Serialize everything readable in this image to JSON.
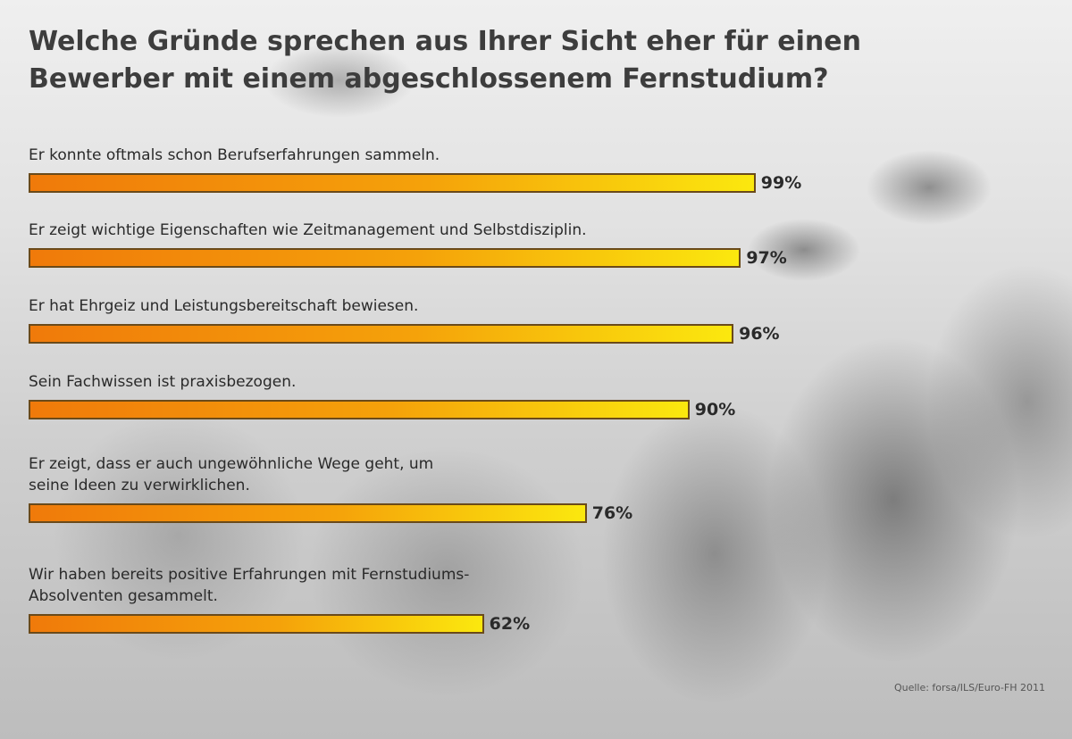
{
  "chart_data": {
    "type": "bar",
    "orientation": "horizontal",
    "title": "Welche Gründe sprechen aus Ihrer Sicht eher für einen Bewerber mit einem abgeschlossenem Fernstudium?",
    "categories": [
      "Er konnte oftmals schon Berufserfahrungen sammeln.",
      "Er zeigt wichtige Eigenschaften wie Zeitmanagement und Selbstdisziplin.",
      "Er hat Ehrgeiz und Leistungsbereitschaft bewiesen.",
      "Sein Fachwissen ist praxisbezogen.",
      "Er zeigt, dass er auch ungewöhnliche Wege geht, um\nseine Ideen zu verwirklichen.",
      "Wir haben bereits positive Erfahrungen mit Fernstudiums-\nAbsolventen gesammelt."
    ],
    "values": [
      99,
      97,
      96,
      90,
      76,
      62
    ],
    "value_labels": [
      "99%",
      "97%",
      "96%",
      "90%",
      "76%",
      "62%"
    ],
    "xlim": [
      0,
      100
    ],
    "grid": false,
    "source": "Quelle: forsa/ILS/Euro-FH 2011",
    "colors": {
      "bar_start": "#f07a0a",
      "bar_end": "#fbe80e",
      "bar_border": "#6a4a1a"
    }
  }
}
